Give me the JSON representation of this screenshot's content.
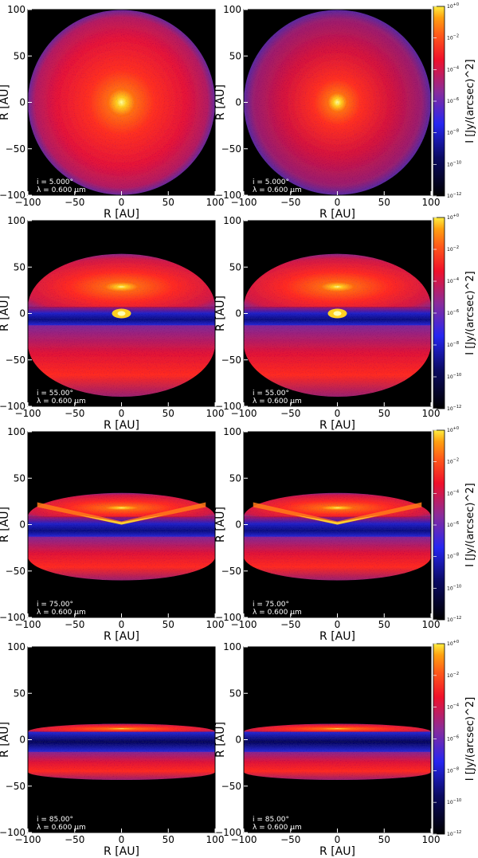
{
  "chart_data": {
    "type": "heatmap",
    "layout": {
      "rows": 4,
      "cols": 2
    },
    "colorbar": {
      "label": "I [Jy/(arcsec)^2]",
      "scale": "log",
      "range": [
        1e-12,
        1
      ],
      "ticks": [
        "10^{+0}",
        "10^{-2}",
        "10^{-4}",
        "10^{-6}",
        "10^{-8}",
        "10^{-10}",
        "10^{-12}"
      ],
      "colors": [
        "#000000",
        "#0a0a4a",
        "#2626f0",
        "#8a2c9a",
        "#f0102a",
        "#ff5a1a",
        "#ffa010",
        "#ffee40"
      ]
    },
    "xlabel": "R [AU]",
    "ylabel": "R [AU]",
    "xlim": [
      -100,
      100
    ],
    "ylim": [
      -100,
      100
    ],
    "xticks": [
      -100,
      -50,
      0,
      50,
      100
    ],
    "yticks": [
      -100,
      -50,
      0,
      50,
      100
    ],
    "panels": [
      {
        "incl_text": "i = 5.000°",
        "lambda_text": "λ = 0.600 μm",
        "inclination_deg": 5,
        "wavelength_um": 0.6,
        "column": "left"
      },
      {
        "incl_text": "i = 5.000°",
        "lambda_text": "λ = 0.600 μm",
        "inclination_deg": 5,
        "wavelength_um": 0.6,
        "column": "right"
      },
      {
        "incl_text": "i = 55.00°",
        "lambda_text": "λ = 0.600 μm",
        "inclination_deg": 55,
        "wavelength_um": 0.6,
        "column": "left"
      },
      {
        "incl_text": "i = 55.00°",
        "lambda_text": "λ = 0.600 μm",
        "inclination_deg": 55,
        "wavelength_um": 0.6,
        "column": "right"
      },
      {
        "incl_text": "i = 75.00°",
        "lambda_text": "λ = 0.600 μm",
        "inclination_deg": 75,
        "wavelength_um": 0.6,
        "column": "left"
      },
      {
        "incl_text": "i = 75.00°",
        "lambda_text": "λ = 0.600 μm",
        "inclination_deg": 75,
        "wavelength_um": 0.6,
        "column": "right"
      },
      {
        "incl_text": "i = 85.00°",
        "lambda_text": "λ = 0.600 μm",
        "inclination_deg": 85,
        "wavelength_um": 0.6,
        "column": "left"
      },
      {
        "incl_text": "i = 85.00°",
        "lambda_text": "λ = 0.600 μm",
        "inclination_deg": 85,
        "wavelength_um": 0.6,
        "column": "right"
      }
    ]
  }
}
